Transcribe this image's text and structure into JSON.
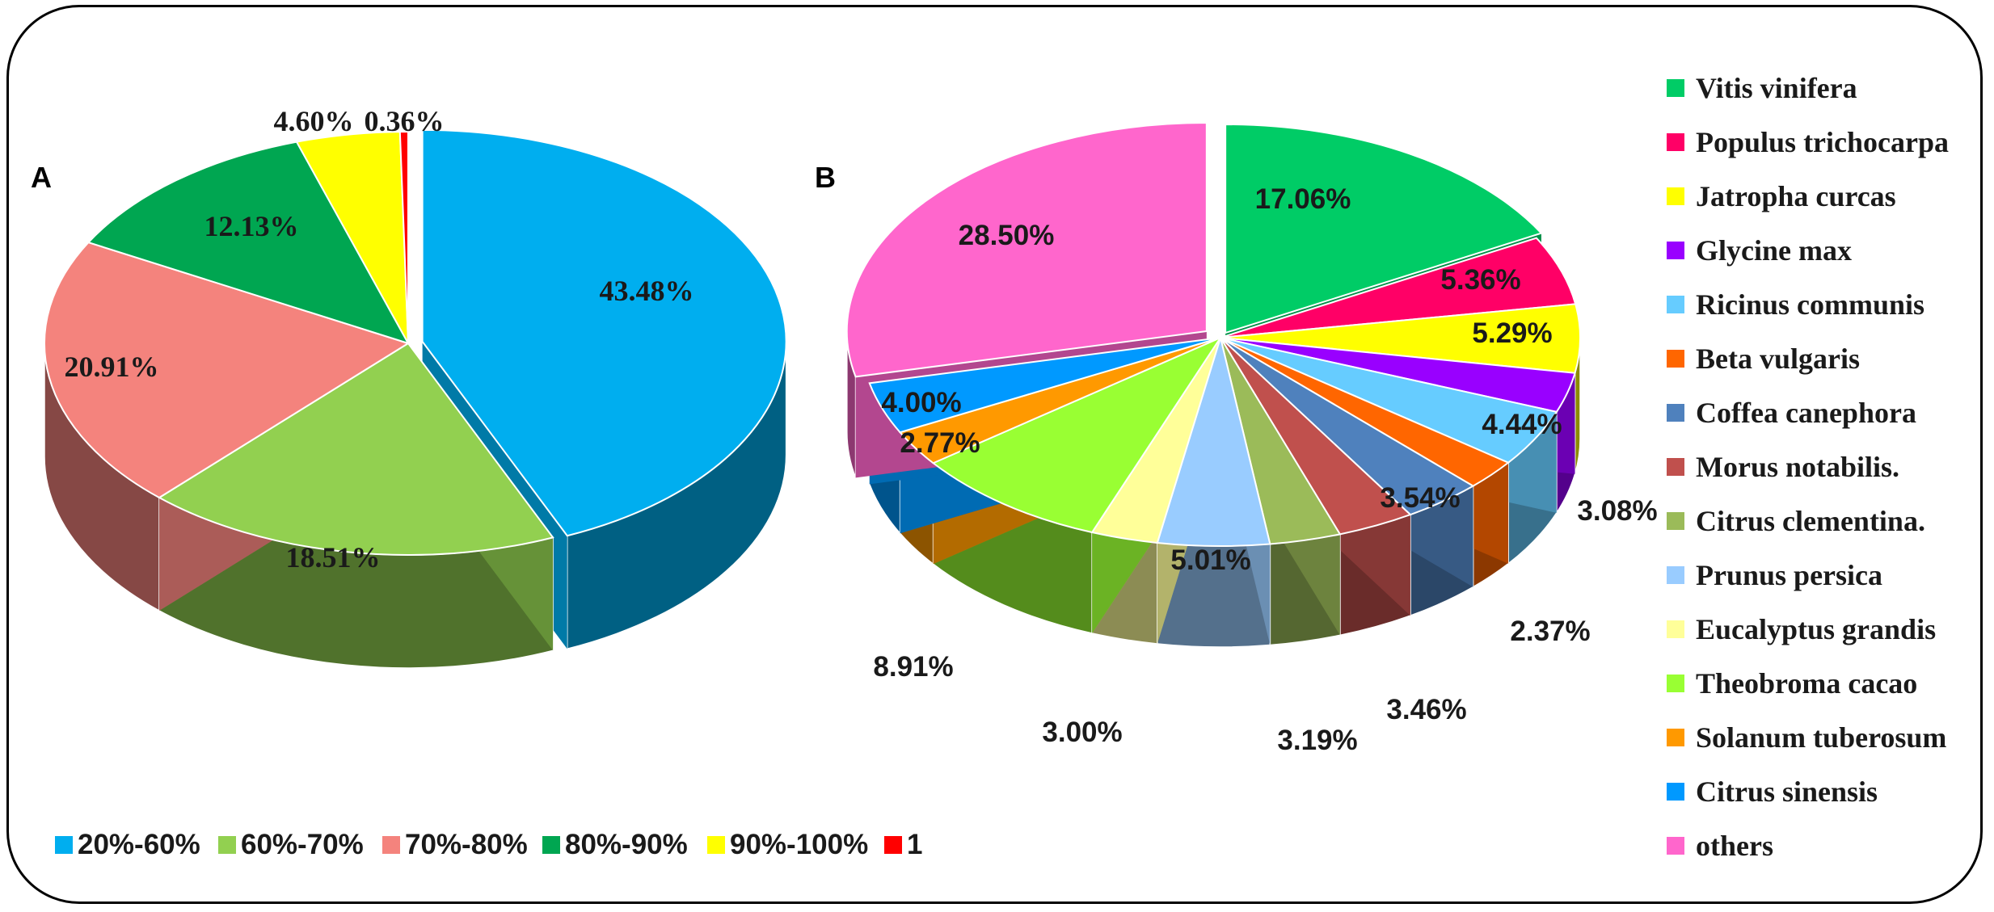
{
  "chart_data": [
    {
      "type": "pie",
      "panel_label": "A",
      "categories": [
        "20%-60%",
        "60%-70%",
        "70%-80%",
        "80%-90%",
        "90%-100%",
        "1"
      ],
      "values": [
        43.48,
        18.51,
        20.91,
        12.13,
        4.6,
        0.36
      ],
      "data_labels": [
        "43.48%",
        "18.51%",
        "20.91%",
        "12.13%",
        "4.60%",
        "0.36%"
      ],
      "colors": [
        "#00AEEF",
        "#92D050",
        "#F4837D",
        "#00A651",
        "#FFFF00",
        "#FF0000"
      ],
      "legend": [
        "20%-60%",
        "60%-70%",
        "70%-80%",
        "80%-90%",
        "90%-100%",
        "1"
      ],
      "legend_position": "bottom",
      "style": "3D exploded pie"
    },
    {
      "type": "pie",
      "panel_label": "B",
      "categories": [
        "Vitis vinifera",
        "Populus trichocarpa",
        "Jatropha curcas",
        "Glycine max",
        "Ricinus communis",
        "Beta vulgaris",
        "Coffea canephora",
        "Morus notabilis.",
        "Citrus clementina.",
        "Prunus persica",
        "Eucalyptus grandis",
        "Theobroma cacao",
        "Solanum tuberosum",
        "Citrus sinensis",
        "others"
      ],
      "values": [
        17.06,
        5.36,
        5.29,
        3.08,
        4.44,
        2.37,
        3.54,
        3.46,
        3.19,
        5.01,
        3.0,
        8.91,
        2.77,
        4.0,
        28.5
      ],
      "data_labels": [
        "17.06%",
        "5.36%",
        "5.29%",
        "3.08%",
        "4.44%",
        "2.37%",
        "3.54%",
        "3.46%",
        "3.19%",
        "5.01%",
        "3.00%",
        "8.91%",
        "2.77%",
        "4.00%",
        "28.50%"
      ],
      "colors": [
        "#00CC66",
        "#FF0066",
        "#FFFF00",
        "#9900FF",
        "#66CCFF",
        "#FF6600",
        "#4F81BD",
        "#C0504D",
        "#9BBB59",
        "#99CCFF",
        "#FFFF99",
        "#99FF33",
        "#FF9900",
        "#0099FF",
        "#FF66CC"
      ],
      "legend": [
        "Vitis vinifera",
        "Populus trichocarpa",
        "Jatropha curcas",
        "Glycine max",
        "Ricinus communis",
        "Beta vulgaris",
        "Coffea canephora",
        "Morus notabilis.",
        "Citrus clementina.",
        "Prunus persica",
        "Eucalyptus grandis",
        "Theobroma cacao",
        "Solanum tuberosum",
        "Citrus sinensis",
        "others"
      ],
      "legend_position": "right",
      "style": "3D pie"
    }
  ]
}
